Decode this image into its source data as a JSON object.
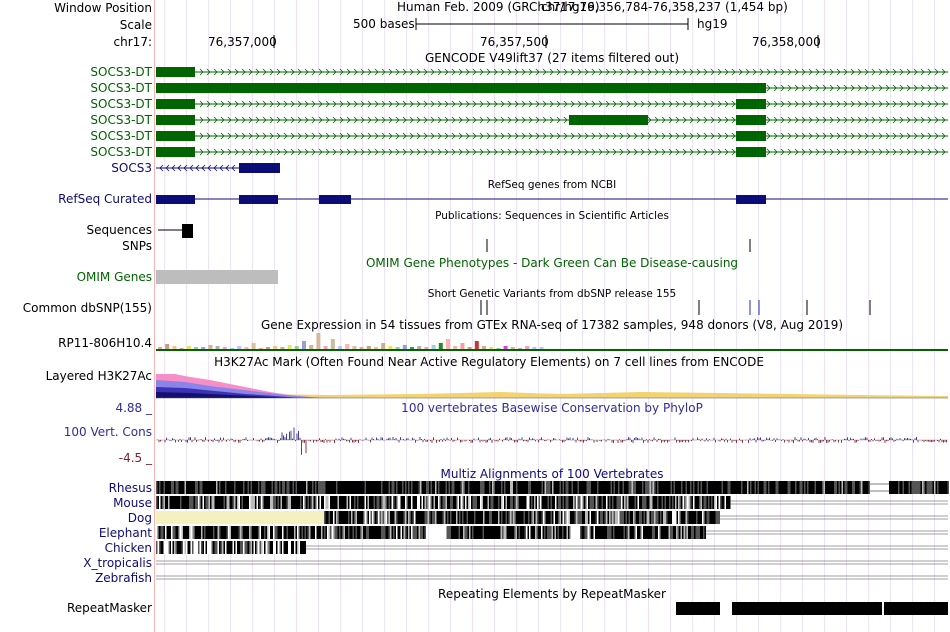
{
  "header": {
    "window_position_label": "Window Position",
    "assembly": "Human Feb. 2009 (GRCh37/hg19)",
    "position": "chr17:76,356,784-76,358,237 (1,454 bp)",
    "scale_label": "Scale",
    "scale_bar_text": "500 bases",
    "db": "hg19",
    "chrom_label": "chr17:",
    "ruler_ticks": [
      "76,357,000",
      "76,357,500",
      "76,358,000"
    ]
  },
  "tracks": {
    "gencode": {
      "title": "GENCODE V49lift37 (27 items filtered out)",
      "items": [
        "SOCS3-DT",
        "SOCS3-DT",
        "SOCS3-DT",
        "SOCS3-DT",
        "SOCS3-DT",
        "SOCS3-DT",
        "SOCS3"
      ],
      "color_noncoding": "#006400",
      "color_coding": "#0c0c78"
    },
    "refseq": {
      "label": "RefSeq Curated",
      "title": "RefSeq genes from NCBI",
      "color": "#0c0c78"
    },
    "publications": {
      "title": "Publications: Sequences in Scientific Articles",
      "label": "Sequences"
    },
    "snps": {
      "label": "SNPs"
    },
    "omim": {
      "label": "OMIM Genes",
      "title": "OMIM Gene Phenotypes - Dark Green Can Be Disease-causing",
      "color": "#006400"
    },
    "dbsnp": {
      "label": "Common dbSNP(155)",
      "title": "Short Genetic Variants from dbSNP release 155"
    },
    "gtex": {
      "label": "RP11-806H10.4",
      "title": "Gene Expression in 54 tissues from GTEx RNA-seq of 17382 samples, 948 donors (V8, Aug 2019)"
    },
    "h3k27ac": {
      "label": "Layered H3K27Ac",
      "title": "H3K27Ac Mark (Often Found Near Active Regulatory Elements) on 7 cell lines from ENCODE"
    },
    "phylop": {
      "label": "100 Vert. Cons",
      "max": "4.88 _",
      "min": "-4.5 _",
      "title": "100 vertebrates Basewise Conservation by PhyloP",
      "color": "#2e2e99"
    },
    "multiz": {
      "title": "Multiz Alignments of 100 Vertebrates",
      "species": [
        "Rhesus",
        "Mouse",
        "Dog",
        "Elephant",
        "Chicken",
        "X_tropicalis",
        "Zebrafish"
      ],
      "color": "#0c0c78"
    },
    "repeatmasker": {
      "label": "RepeatMasker",
      "title": "Repeating Elements by RepeatMasker"
    }
  }
}
